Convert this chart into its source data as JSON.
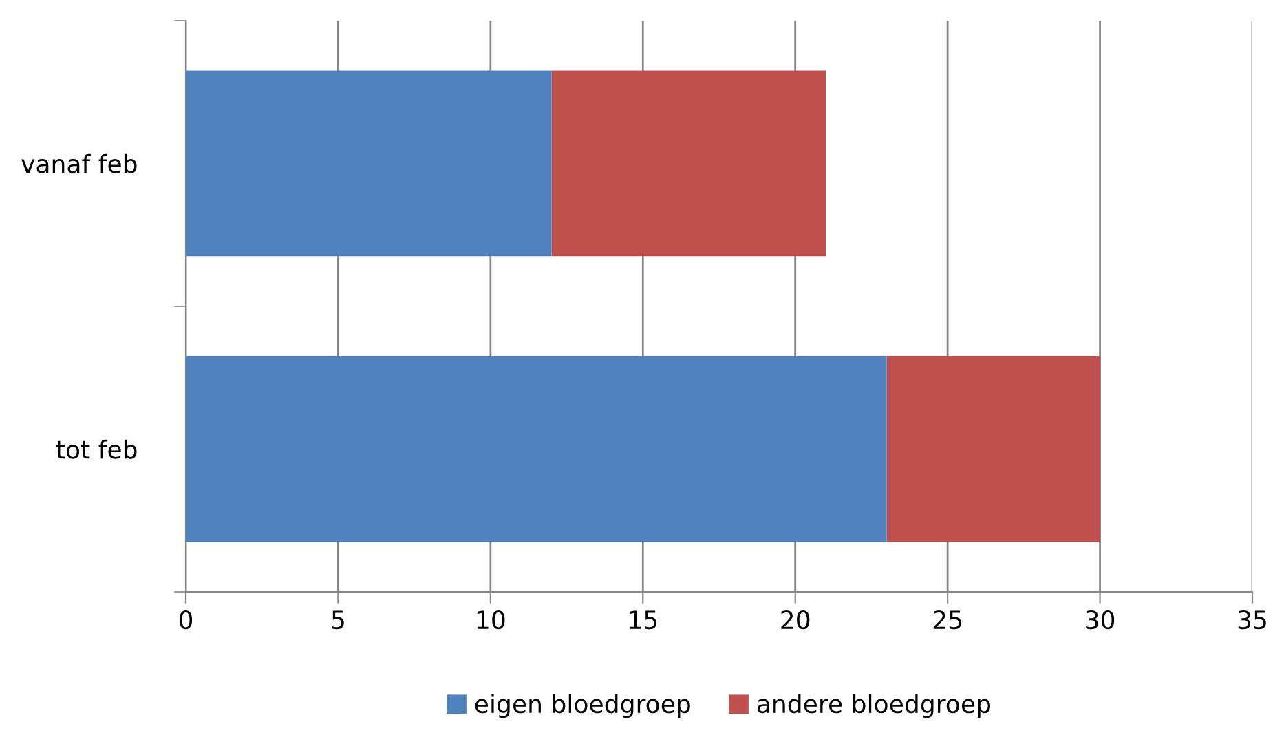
{
  "chart_data": {
    "type": "bar",
    "orientation": "horizontal",
    "stacked": true,
    "categories": [
      "vanaf feb",
      "tot feb"
    ],
    "series": [
      {
        "name": "eigen bloedgroep",
        "color": "#4f81bd",
        "values": [
          12,
          23
        ]
      },
      {
        "name": "andere bloedgroep",
        "color": "#c0504d",
        "values": [
          9,
          7
        ]
      }
    ],
    "xlim": [
      0,
      35
    ],
    "xticks": [
      0,
      5,
      10,
      15,
      20,
      25,
      30,
      35
    ],
    "grid": "x",
    "legend": "bottom"
  }
}
